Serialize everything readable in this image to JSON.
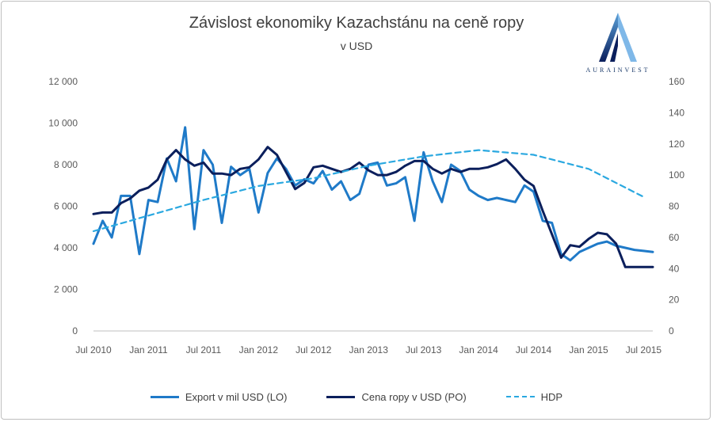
{
  "chart_data": {
    "type": "line",
    "title": "Závislost ekonomiky Kazachstánu na ceně ropy",
    "subtitle": "v USD",
    "left_axis": {
      "min": 0,
      "max": 12000,
      "ticks": [
        "0",
        "2 000",
        "4 000",
        "6 000",
        "8 000",
        "10 000",
        "12 000"
      ]
    },
    "right_axis": {
      "min": 0,
      "max": 160,
      "ticks": [
        "0",
        "20",
        "40",
        "60",
        "80",
        "100",
        "120",
        "140",
        "160"
      ]
    },
    "x_ticks": [
      "Jul 2010",
      "Jan 2011",
      "Jul 2011",
      "Jan 2012",
      "Jul 2012",
      "Jan 2013",
      "Jul 2013",
      "Jan 2014",
      "Jul 2014",
      "Jan 2015",
      "Jul 2015"
    ],
    "x_month_index_of_first_tick": 0,
    "x_last_month_index": 61,
    "legend_position": "bottom",
    "series": [
      {
        "name": "Export v mil USD (LO)",
        "axis": "left",
        "color": "#1f7ac8",
        "dash": "solid",
        "x": [
          0,
          1,
          2,
          3,
          4,
          5,
          6,
          7,
          8,
          9,
          10,
          11,
          12,
          13,
          14,
          15,
          16,
          17,
          18,
          19,
          20,
          21,
          22,
          23,
          24,
          25,
          26,
          27,
          28,
          29,
          30,
          31,
          32,
          33,
          34,
          35,
          36,
          37,
          38,
          39,
          40,
          41,
          42,
          43,
          44,
          45,
          46,
          47,
          48,
          49,
          50,
          51,
          52,
          53,
          54,
          55,
          56,
          57,
          58,
          59,
          60,
          61
        ],
        "values": [
          4200,
          5300,
          4500,
          6500,
          6500,
          3700,
          6300,
          6200,
          8300,
          7200,
          9800,
          4900,
          8700,
          8000,
          5200,
          7900,
          7500,
          7800,
          5700,
          7600,
          8300,
          7800,
          7000,
          7300,
          7100,
          7700,
          6800,
          7200,
          6300,
          6600,
          8000,
          8100,
          7000,
          7100,
          7400,
          5300,
          8600,
          7200,
          6200,
          8000,
          7700,
          6800,
          6500,
          6300,
          6400,
          6300,
          6200,
          7000,
          6700,
          5300,
          5200,
          3700,
          3400,
          3800,
          4000,
          4200,
          4300,
          4100,
          4000,
          3900,
          3850,
          3800
        ]
      },
      {
        "name": "Cena ropy v USD (PO)",
        "axis": "right",
        "color": "#0b1f5c",
        "dash": "solid",
        "x": [
          0,
          1,
          2,
          3,
          4,
          5,
          6,
          7,
          8,
          9,
          10,
          11,
          12,
          13,
          14,
          15,
          16,
          17,
          18,
          19,
          20,
          21,
          22,
          23,
          24,
          25,
          26,
          27,
          28,
          29,
          30,
          31,
          32,
          33,
          34,
          35,
          36,
          37,
          38,
          39,
          40,
          41,
          42,
          43,
          44,
          45,
          46,
          47,
          48,
          49,
          50,
          51,
          52,
          53,
          54,
          55,
          56,
          57,
          58,
          59,
          60,
          61
        ],
        "values": [
          75,
          76,
          76,
          82,
          85,
          90,
          92,
          97,
          110,
          116,
          110,
          106,
          108,
          101,
          101,
          100,
          104,
          105,
          110,
          118,
          113,
          102,
          91,
          95,
          105,
          106,
          104,
          102,
          104,
          108,
          103,
          100,
          100,
          102,
          106,
          109,
          109,
          104,
          101,
          104,
          102,
          104,
          104,
          105,
          107,
          110,
          104,
          97,
          93,
          77,
          62,
          47,
          55,
          54,
          59,
          63,
          62,
          56,
          41,
          41,
          41,
          41
        ]
      },
      {
        "name": "HDP",
        "axis": "right",
        "color": "#2aa8e0",
        "dash": "dashed",
        "x": [
          0,
          6,
          12,
          18,
          24,
          30,
          36,
          42,
          48,
          54,
          60
        ],
        "values": [
          64,
          74,
          84,
          93,
          98,
          106,
          112,
          116,
          113,
          104,
          86
        ]
      }
    ]
  }
}
